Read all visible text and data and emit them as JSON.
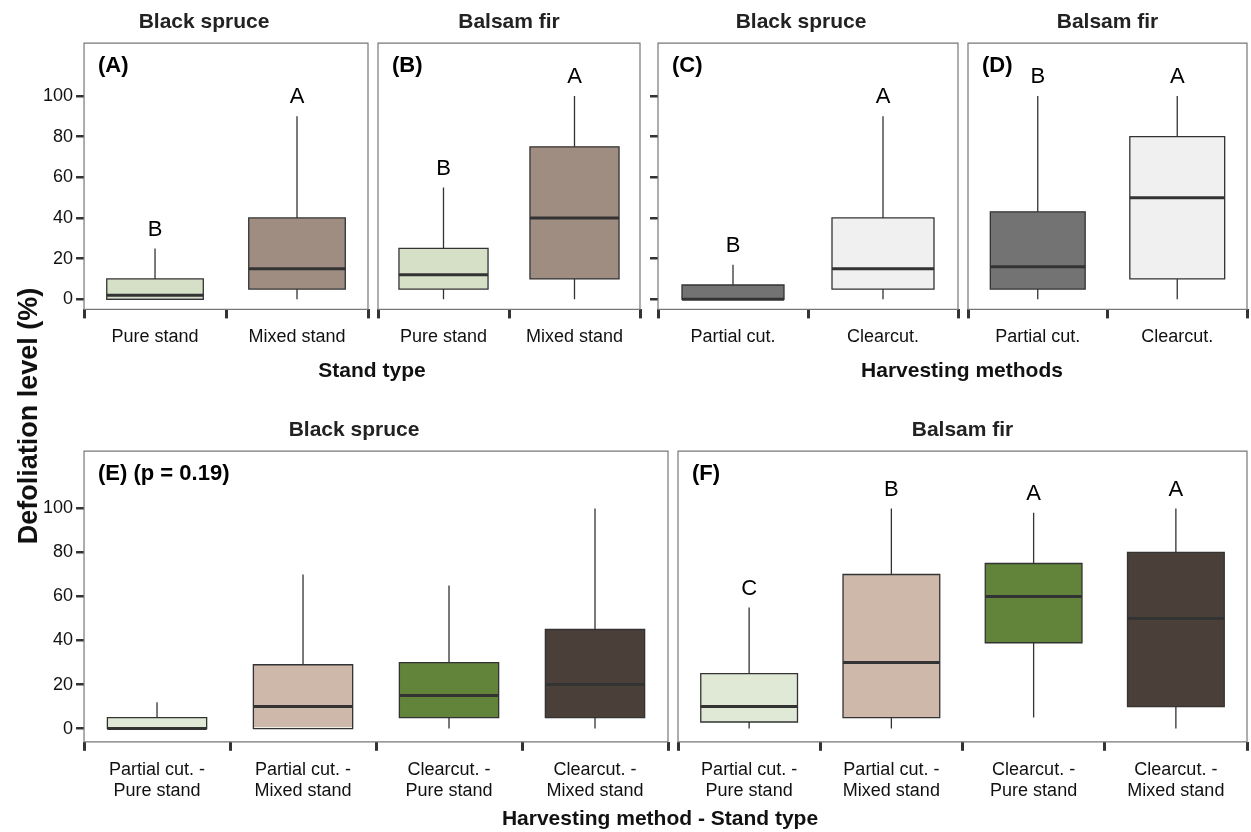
{
  "chart_data": [
    {
      "type": "box",
      "title": "Black spruce",
      "ylabel": "Defoliation level (%)",
      "xlabel": "Stand type",
      "categories": [
        "Pure stand",
        "Mixed stand"
      ],
      "colors": [
        "#d5e0c6",
        "#9e8d80"
      ],
      "boxes": [
        {
          "low": 0,
          "q1": 0,
          "median": 2,
          "q3": 10,
          "high": 25
        },
        {
          "low": 0,
          "q1": 5,
          "median": 15,
          "q3": 40,
          "high": 90
        }
      ],
      "ylim": [
        -5,
        126
      ],
      "yticks": [
        0,
        20,
        40,
        60,
        80,
        100
      ],
      "annotations": [
        "(A)",
        "B",
        "A"
      ]
    },
    {
      "type": "box",
      "title": "Balsam fir",
      "categories": [
        "Pure stand",
        "Mixed stand"
      ],
      "colors": [
        "#d5e0c6",
        "#9e8d80"
      ],
      "boxes": [
        {
          "low": 0,
          "q1": 5,
          "median": 12,
          "q3": 25,
          "high": 55
        },
        {
          "low": 0,
          "q1": 10,
          "median": 40,
          "q3": 75,
          "high": 100
        }
      ],
      "ylim": [
        -5,
        126
      ],
      "tick_labels": "x",
      "annotations": [
        "(B)",
        "B",
        "A"
      ]
    },
    {
      "type": "box",
      "title": "Black spruce",
      "xlabel": "Harvesting methods",
      "categories": [
        "Partial cut.",
        "Clearcut."
      ],
      "colors": [
        "#737373",
        "#f0f0f0"
      ],
      "boxes": [
        {
          "low": 0,
          "q1": 0,
          "median": 0,
          "q3": 7,
          "high": 17
        },
        {
          "low": 0,
          "q1": 5,
          "median": 15,
          "q3": 40,
          "high": 90
        }
      ],
      "ylim": [
        -5,
        126
      ],
      "yticks": [
        {
          "value": 0,
          "label": null
        },
        {
          "value": 20,
          "label": null
        },
        {
          "value": 40,
          "label": null
        },
        {
          "value": 60,
          "label": null
        },
        {
          "value": 80,
          "label": null
        },
        {
          "value": 100,
          "label": null
        }
      ],
      "tick_labels": "x",
      "annotations": [
        "(C)",
        "B",
        "A"
      ]
    },
    {
      "type": "box",
      "title": "Balsam fir",
      "categories": [
        "Partial cut.",
        "Clearcut."
      ],
      "colors": [
        "#737373",
        "#f0f0f0"
      ],
      "boxes": [
        {
          "low": 0,
          "q1": 5,
          "median": 16,
          "q3": 43,
          "high": 100
        },
        {
          "low": 0,
          "q1": 10,
          "median": 50,
          "q3": 80,
          "high": 100
        }
      ],
      "ylim": [
        -5,
        126
      ],
      "tick_labels": "x",
      "annotations": [
        "(D)",
        "B",
        "A"
      ]
    },
    {
      "type": "box",
      "title": "Black spruce",
      "xlabel": "Harvesting method - Stand type",
      "categories": [
        "Partial cut. - Pure stand",
        "Partial cut. - Mixed stand",
        "Clearcut. - Pure stand",
        "Clearcut. - Mixed stand"
      ],
      "colors": [
        "#e0e8d6",
        "#cdb8aa",
        "#62843a",
        "#4b3f39"
      ],
      "boxes": [
        {
          "low": 0,
          "q1": 0,
          "median": 0,
          "q3": 5,
          "high": 12
        },
        {
          "low": 0,
          "q1": 0,
          "median": 10,
          "q3": 29,
          "high": 70
        },
        {
          "low": 0,
          "q1": 5,
          "median": 15,
          "q3": 30,
          "high": 65
        },
        {
          "low": 0,
          "q1": 5,
          "median": 20,
          "q3": 45,
          "high": 100
        }
      ],
      "ylim": [
        -6,
        126
      ],
      "yticks": [
        0,
        20,
        40,
        60,
        80,
        100
      ],
      "annotations": [
        "(E) (p = 0.19)"
      ]
    },
    {
      "type": "box",
      "title": "Balsam fir",
      "categories": [
        "Partial cut. - Pure stand",
        "Partial cut. - Mixed stand",
        "Clearcut. - Pure stand",
        "Clearcut. - Mixed stand"
      ],
      "colors": [
        "#e0e8d6",
        "#cdb8aa",
        "#62843a",
        "#4b3f39"
      ],
      "boxes": [
        {
          "low": 0,
          "q1": 3,
          "median": 10,
          "q3": 25,
          "high": 55
        },
        {
          "low": 0,
          "q1": 5,
          "median": 30,
          "q3": 70,
          "high": 100
        },
        {
          "low": 5,
          "q1": 39,
          "median": 60,
          "q3": 75,
          "high": 98
        },
        {
          "low": 0,
          "q1": 10,
          "median": 50,
          "q3": 80,
          "high": 100
        }
      ],
      "ylim": [
        -6,
        126
      ],
      "tick_labels": "x",
      "annotations": [
        "(F)",
        "C",
        "B",
        "A",
        "A"
      ]
    }
  ]
}
